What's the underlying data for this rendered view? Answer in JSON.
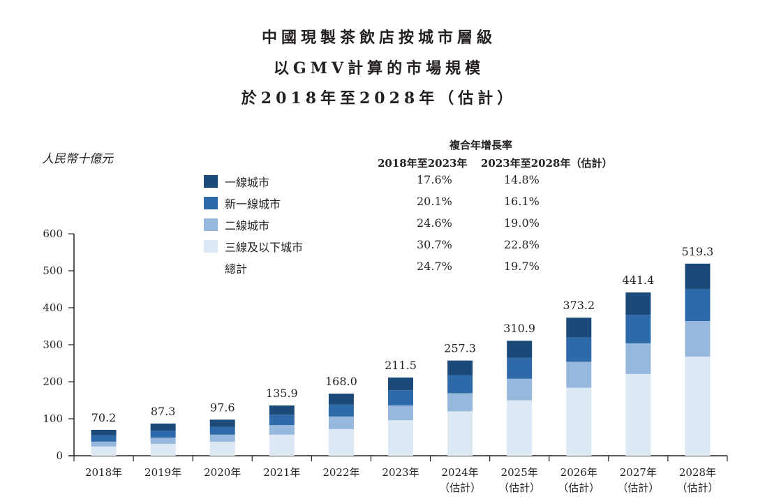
{
  "chart_data": {
    "type": "bar",
    "stacked": true,
    "title": [
      "中國現製茶飲店按城市層級",
      "以GMV計算的市場規模",
      "於2018年至2028年（估計）"
    ],
    "ylabel": "人民幣十億元",
    "xlabel": "",
    "ylim": [
      0,
      600
    ],
    "yticks": [
      0,
      100,
      200,
      300,
      400,
      500,
      600
    ],
    "categories": [
      {
        "year": "2018年",
        "note": ""
      },
      {
        "year": "2019年",
        "note": ""
      },
      {
        "year": "2020年",
        "note": ""
      },
      {
        "year": "2021年",
        "note": ""
      },
      {
        "year": "2022年",
        "note": ""
      },
      {
        "year": "2023年",
        "note": ""
      },
      {
        "year": "2024年",
        "note": "（估計）"
      },
      {
        "year": "2025年",
        "note": "（估計）"
      },
      {
        "year": "2026年",
        "note": "（估計）"
      },
      {
        "year": "2027年",
        "note": "（估計）"
      },
      {
        "year": "2028年",
        "note": "（估計）"
      }
    ],
    "totals": [
      "70.2",
      "87.3",
      "97.6",
      "135.9",
      "168.0",
      "211.5",
      "257.3",
      "310.9",
      "373.2",
      "441.4",
      "519.3"
    ],
    "series": [
      {
        "name": "三線及以下城市",
        "color": "#dce8f4",
        "values": [
          25,
          32,
          38,
          57,
          72,
          96,
          120,
          150,
          184,
          221,
          268
        ]
      },
      {
        "name": "二線城市",
        "color": "#95b8dc",
        "values": [
          13,
          17,
          19,
          26,
          34,
          40,
          49,
          58,
          70,
          83,
          96
        ]
      },
      {
        "name": "新一線城市",
        "color": "#2e6aaa",
        "values": [
          17,
          19,
          21,
          28,
          32,
          41,
          49,
          57,
          66,
          77,
          87
        ]
      },
      {
        "name": "一線城市",
        "color": "#1c4a78",
        "values": [
          15,
          19,
          19.6,
          24.9,
          30,
          34.5,
          39.3,
          45.9,
          53.2,
          60.4,
          68.3
        ]
      }
    ],
    "legend_position": "top-center",
    "grid": false
  },
  "cagr_table": {
    "header": "複合年增長率",
    "columns": [
      "2018年至2023年",
      "2023年至2028年（估計）"
    ],
    "rows": [
      {
        "label": "一線城市",
        "color": "#1c4a78",
        "values": [
          "17.6%",
          "14.8%"
        ]
      },
      {
        "label": "新一線城市",
        "color": "#2e6aaa",
        "values": [
          "20.1%",
          "16.1%"
        ]
      },
      {
        "label": "二線城市",
        "color": "#95b8dc",
        "values": [
          "24.6%",
          "19.0%"
        ]
      },
      {
        "label": "三線及以下城市",
        "color": "#dce8f4",
        "values": [
          "30.7%",
          "22.8%"
        ]
      },
      {
        "label": "總計",
        "color": null,
        "values": [
          "24.7%",
          "19.7%"
        ]
      }
    ]
  }
}
